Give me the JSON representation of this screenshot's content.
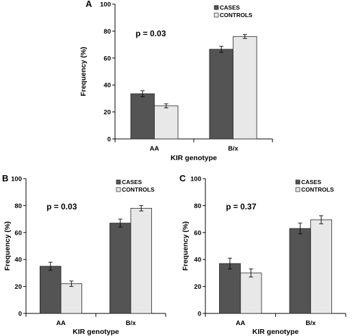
{
  "chart_data": [
    {
      "type": "bar",
      "panel": "A",
      "categories": [
        "AA",
        "B/x"
      ],
      "series": [
        {
          "name": "CASES",
          "values": [
            33.5,
            66.5
          ],
          "errors": [
            2.2,
            2.2
          ]
        },
        {
          "name": "CONTROLS",
          "values": [
            24.5,
            76
          ],
          "errors": [
            1.5,
            1.5
          ]
        }
      ],
      "annotation": "p = 0.03",
      "xlabel": "KIR genotype",
      "ylabel": "Frequency (%)",
      "ylim": [
        0,
        100
      ],
      "yticks": [
        "0",
        "20",
        "40",
        "60",
        "80",
        "100"
      ],
      "legend": "top-right",
      "colors": [
        "#545454",
        "#e8e8e8"
      ]
    },
    {
      "type": "bar",
      "panel": "B",
      "categories": [
        "AA",
        "B/x"
      ],
      "series": [
        {
          "name": "CASES",
          "values": [
            35,
            67
          ],
          "errors": [
            3,
            3
          ]
        },
        {
          "name": "CONTROLS",
          "values": [
            22,
            78
          ],
          "errors": [
            2,
            2
          ]
        }
      ],
      "annotation": "p = 0.03",
      "xlabel": "KIR genotype",
      "ylabel": "Frequency (%)",
      "ylim": [
        0,
        100
      ],
      "yticks": [
        "0",
        "20",
        "40",
        "60",
        "80",
        "100"
      ],
      "legend": "top-right",
      "colors": [
        "#545454",
        "#e8e8e8"
      ]
    },
    {
      "type": "bar",
      "panel": "C",
      "categories": [
        "AA",
        "B/x"
      ],
      "series": [
        {
          "name": "CASES",
          "values": [
            37,
            63
          ],
          "errors": [
            4,
            4
          ]
        },
        {
          "name": "CONTROLS",
          "values": [
            30,
            69.5
          ],
          "errors": [
            3,
            3
          ]
        }
      ],
      "annotation": "p = 0.37",
      "xlabel": "KIR genotype",
      "ylabel": "Frequency (%)",
      "ylim": [
        0,
        100
      ],
      "yticks": [
        "0",
        "20",
        "40",
        "60",
        "80",
        "100"
      ],
      "legend": "top-right",
      "colors": [
        "#545454",
        "#e8e8e8"
      ]
    }
  ]
}
